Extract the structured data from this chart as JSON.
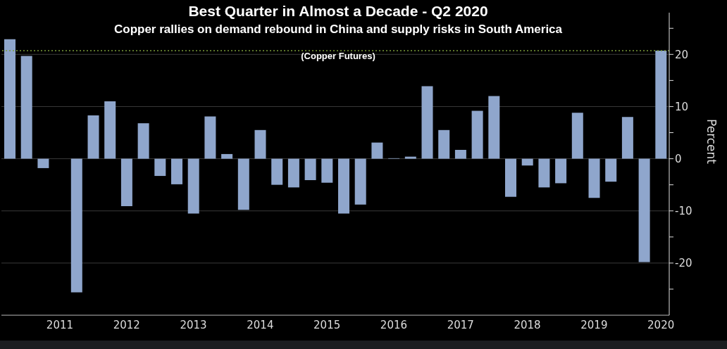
{
  "chart_data": {
    "type": "bar",
    "title": "Best Quarter in Almost a Decade - Q2 2020",
    "subtitle": "Copper rallies on demand rebound in China and supply risks in South America",
    "annotations": [
      "(Copper Futures)"
    ],
    "ylabel": "Percent",
    "categories": [
      null,
      null,
      null,
      "2011",
      null,
      null,
      null,
      "2012",
      null,
      null,
      null,
      "2013",
      null,
      null,
      null,
      "2014",
      null,
      null,
      null,
      "2015",
      null,
      null,
      null,
      "2016",
      null,
      null,
      null,
      "2017",
      null,
      null,
      null,
      "2018",
      null,
      null,
      null,
      "2019",
      null,
      null,
      null,
      "2020"
    ],
    "values": [
      22.9,
      19.7,
      -1.8,
      0,
      -25.6,
      8.3,
      11.0,
      -9.1,
      6.8,
      -3.3,
      -4.9,
      -10.5,
      8.1,
      0.9,
      -9.8,
      5.5,
      -5.0,
      -5.5,
      -4.1,
      -4.6,
      -10.5,
      -8.8,
      3.1,
      0.1,
      0.4,
      13.9,
      5.5,
      1.7,
      9.2,
      12.0,
      -7.3,
      -1.3,
      -5.5,
      -4.7,
      8.8,
      -7.5,
      -4.4,
      8.0,
      -19.8,
      20.7
    ],
    "color": "#8fa6cc",
    "ylim": [
      -30,
      28
    ],
    "yticks": [
      {
        "value": -25,
        "label": null
      },
      -20,
      {
        "value": -15,
        "label": null
      },
      -10,
      {
        "value": -5,
        "label": null
      },
      0,
      {
        "value": 5,
        "label": null
      },
      10,
      {
        "value": 15,
        "label": null
      },
      20,
      {
        "value": 25,
        "label": null
      }
    ],
    "ref_lines": [
      {
        "axis": "y",
        "value": 20.7,
        "color": "#7a9a3a",
        "line_style": "dotted"
      }
    ],
    "grid": "y"
  }
}
